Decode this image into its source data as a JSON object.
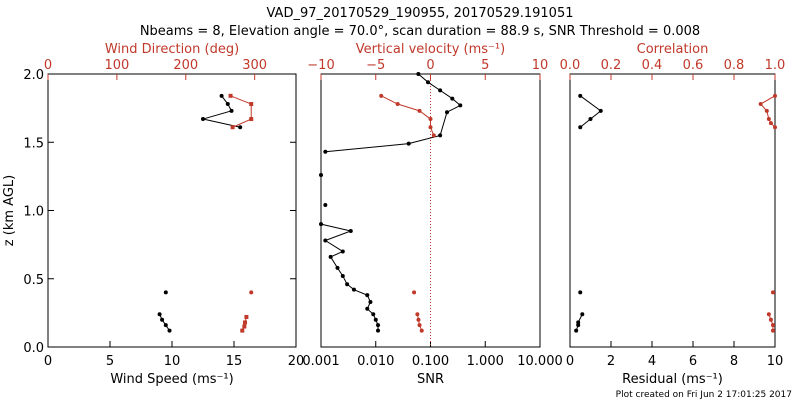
{
  "title_line1": "VAD_97_20170529_190955, 20170529.191051",
  "title_line2": "Nbeams = 8, Elevation angle = 70.0°, scan duration = 88.9 s, SNR Threshold = 0.008",
  "footer": "Plot created on Fri Jun  2 17:01:25 2017",
  "colors": {
    "black": "#000000",
    "red": "#c0392b"
  },
  "chart_data": [
    {
      "type": "line",
      "panel": "wind",
      "ylabel": "z (km AGL)",
      "ylim": [
        0,
        2.0
      ],
      "yticks": [
        "0.0",
        "0.5",
        "1.0",
        "1.5",
        "2.0"
      ],
      "bottom_axis": {
        "label": "Wind Speed (ms⁻¹)",
        "lim": [
          0,
          20
        ],
        "ticks": [
          "0",
          "5",
          "10",
          "15",
          "20"
        ]
      },
      "top_axis": {
        "label": "Wind Direction (deg)",
        "lim": [
          0,
          360
        ],
        "ticks": [
          "0",
          "100",
          "200",
          "300"
        ]
      },
      "series": [
        {
          "axis": "bottom",
          "color": "black",
          "x": [
            14.0,
            14.5,
            14.8,
            12.5,
            15.5
          ],
          "z": [
            1.84,
            1.78,
            1.73,
            1.67,
            1.61
          ],
          "symbol": "dot"
        },
        {
          "axis": "bottom",
          "color": "black",
          "x": [
            9.0,
            9.2,
            9.5,
            9.8
          ],
          "z": [
            0.24,
            0.2,
            0.16,
            0.12
          ],
          "symbol": "dot"
        },
        {
          "axis": "bottom",
          "color": "black",
          "x": [
            9.5
          ],
          "z": [
            0.4
          ],
          "symbol": "dot"
        },
        {
          "axis": "top",
          "color": "red",
          "x": [
            265,
            295,
            295,
            268
          ],
          "z": [
            1.84,
            1.78,
            1.67,
            1.61
          ],
          "symbol": "square"
        },
        {
          "axis": "top",
          "color": "red",
          "x": [
            295
          ],
          "z": [
            0.4
          ],
          "symbol": "dot"
        },
        {
          "axis": "top",
          "color": "red",
          "x": [
            288,
            286,
            285,
            282
          ],
          "z": [
            0.22,
            0.18,
            0.15,
            0.12
          ],
          "symbol": "square"
        }
      ]
    },
    {
      "type": "line",
      "panel": "snr",
      "ylim": [
        0,
        2.0
      ],
      "bottom_axis": {
        "label": "SNR",
        "scale": "log",
        "lim": [
          0.001,
          10
        ],
        "ticks": [
          "0.001",
          "0.010",
          "0.100",
          "1.000",
          "10.000"
        ],
        "tick_values": [
          0.001,
          0.01,
          0.1,
          1,
          10
        ]
      },
      "top_axis": {
        "label": "Vertical velocity (ms⁻¹)",
        "lim": [
          -10,
          10
        ],
        "ticks": [
          "−10",
          "−5",
          "0",
          "5",
          "10"
        ],
        "tick_values": [
          -10,
          -5,
          0,
          5,
          10
        ]
      },
      "threshold_line": {
        "axis": "top",
        "value": 0,
        "style": "dotted",
        "color": "red"
      },
      "series": [
        {
          "axis": "bottom",
          "color": "black",
          "x": [
            0.06,
            0.09,
            0.15,
            0.25,
            0.35,
            0.2,
            0.15,
            0.04,
            0.0012
          ],
          "z": [
            2.0,
            1.94,
            1.88,
            1.82,
            1.77,
            1.72,
            1.55,
            1.49,
            1.43
          ],
          "symbol": "dot"
        },
        {
          "axis": "bottom",
          "color": "black",
          "x": [
            0.001
          ],
          "z": [
            1.26
          ],
          "symbol": "dot"
        },
        {
          "axis": "bottom",
          "color": "black",
          "x": [
            0.0012
          ],
          "z": [
            1.04
          ],
          "symbol": "dot"
        },
        {
          "axis": "bottom",
          "color": "black",
          "x": [
            0.001,
            0.0035,
            0.0012,
            0.0025,
            0.0015,
            0.002,
            0.0025,
            0.003,
            0.004,
            0.007,
            0.008,
            0.007,
            0.009,
            0.01,
            0.011,
            0.011
          ],
          "z": [
            0.9,
            0.85,
            0.78,
            0.7,
            0.66,
            0.58,
            0.52,
            0.46,
            0.42,
            0.38,
            0.33,
            0.28,
            0.24,
            0.2,
            0.16,
            0.12
          ],
          "symbol": "dot"
        },
        {
          "axis": "top",
          "color": "red",
          "x": [
            -4.5,
            -3.0,
            -1.0,
            0.0,
            0.0,
            0.3
          ],
          "z": [
            1.84,
            1.78,
            1.73,
            1.67,
            1.61,
            1.55
          ],
          "symbol": "dot"
        },
        {
          "axis": "top",
          "color": "red",
          "x": [
            -1.5
          ],
          "z": [
            0.4
          ],
          "symbol": "dot"
        },
        {
          "axis": "top",
          "color": "red",
          "x": [
            -1.2,
            -1.1,
            -1.0,
            -0.8
          ],
          "z": [
            0.24,
            0.2,
            0.16,
            0.12
          ],
          "symbol": "dot"
        }
      ]
    },
    {
      "type": "line",
      "panel": "quality",
      "ylim": [
        0,
        2.0
      ],
      "bottom_axis": {
        "label": "Residual (ms⁻¹)",
        "lim": [
          0,
          10
        ],
        "ticks": [
          "0",
          "2",
          "4",
          "6",
          "8",
          "10"
        ]
      },
      "top_axis": {
        "label": "Correlation",
        "lim": [
          0,
          1.0
        ],
        "ticks": [
          "0.0",
          "0.2",
          "0.4",
          "0.6",
          "0.8",
          "1.0"
        ]
      },
      "series": [
        {
          "axis": "bottom",
          "color": "black",
          "x": [
            0.5,
            1.5,
            1.0,
            0.5
          ],
          "z": [
            1.84,
            1.73,
            1.67,
            1.61
          ],
          "symbol": "dot"
        },
        {
          "axis": "bottom",
          "color": "black",
          "x": [
            0.5
          ],
          "z": [
            0.4
          ],
          "symbol": "dot"
        },
        {
          "axis": "bottom",
          "color": "black",
          "x": [
            0.6,
            0.4,
            0.4,
            0.3
          ],
          "z": [
            0.24,
            0.18,
            0.16,
            0.12
          ],
          "symbol": "dot"
        },
        {
          "axis": "top",
          "color": "red",
          "x": [
            1.0,
            0.93,
            0.96,
            0.97,
            0.98,
            1.0
          ],
          "z": [
            1.84,
            1.78,
            1.73,
            1.67,
            1.64,
            1.61
          ],
          "symbol": "dot"
        },
        {
          "axis": "top",
          "color": "red",
          "x": [
            0.99
          ],
          "z": [
            0.4
          ],
          "symbol": "dot"
        },
        {
          "axis": "top",
          "color": "red",
          "x": [
            0.97,
            0.98,
            0.99,
            0.99
          ],
          "z": [
            0.24,
            0.2,
            0.16,
            0.12
          ],
          "symbol": "dot"
        }
      ]
    }
  ]
}
